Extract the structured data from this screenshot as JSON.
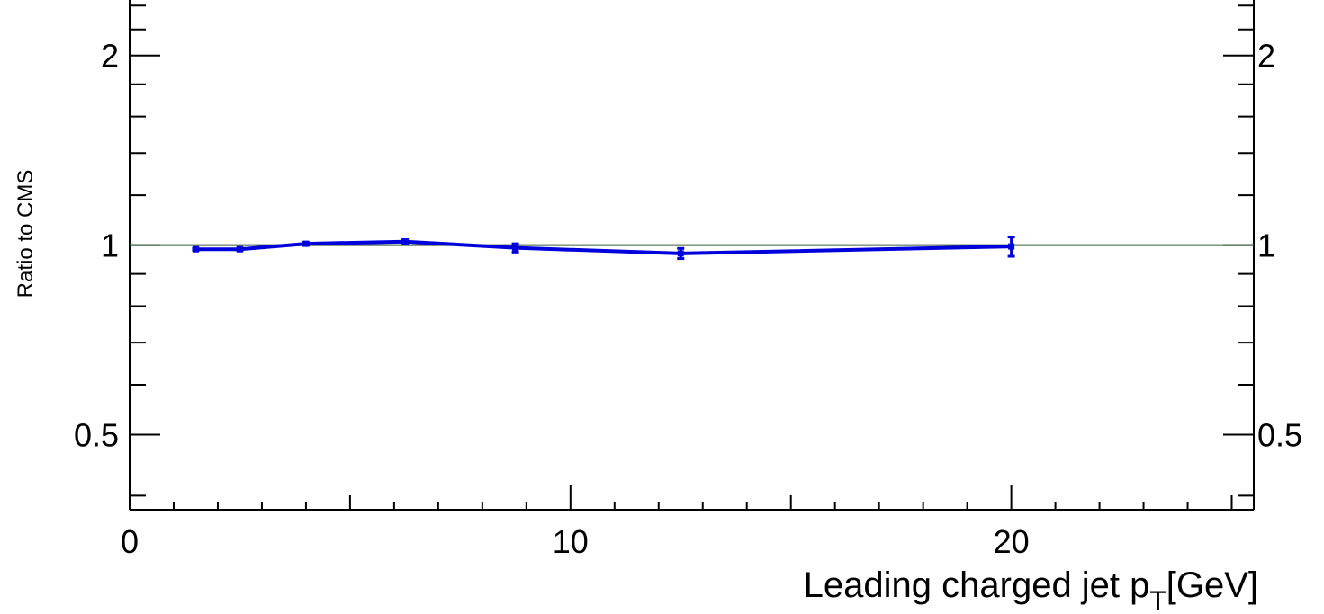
{
  "chart_data": {
    "type": "line",
    "ylabel": "Ratio to CMS",
    "xlabel": {
      "main": "Leading charged jet p",
      "subscript": "T",
      "unit": "[GeV]"
    },
    "xlim": [
      0,
      25.5
    ],
    "ylim": [
      0.38,
      2.45
    ],
    "yscale": "log",
    "x_tick_labels": [
      {
        "value": 0,
        "label": "0"
      },
      {
        "value": 10,
        "label": "10"
      },
      {
        "value": 20,
        "label": "20"
      }
    ],
    "y_tick_labels": [
      {
        "value": 0.5,
        "label": "0.5"
      },
      {
        "value": 1,
        "label": "1"
      },
      {
        "value": 2,
        "label": "2"
      }
    ],
    "reference_line": {
      "y": 1,
      "color": "#3f5f3f"
    },
    "series": [
      {
        "color": "#0000dd",
        "x": [
          1.5,
          2.5,
          4.0,
          6.25,
          8.75,
          12.5,
          20.0
        ],
        "y": [
          0.985,
          0.985,
          1.005,
          1.013,
          0.99,
          0.97,
          0.995
        ],
        "err": [
          0.004,
          0.004,
          0.005,
          0.007,
          0.015,
          0.018,
          0.035
        ]
      }
    ],
    "grid": false,
    "legend": "none"
  }
}
